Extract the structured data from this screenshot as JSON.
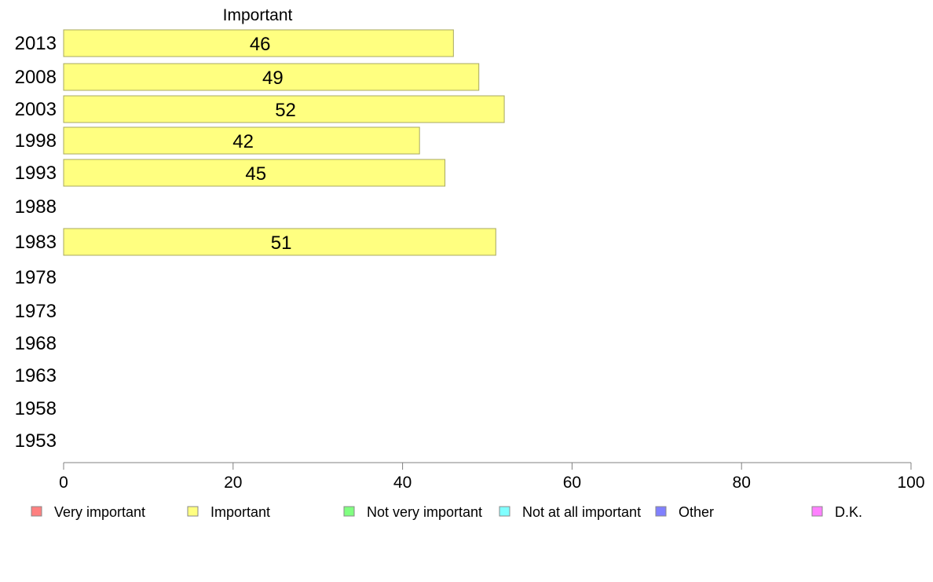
{
  "chart_data": {
    "type": "bar",
    "orientation": "horizontal",
    "series_label": "Important",
    "categories": [
      "2013",
      "2008",
      "2003",
      "1998",
      "1993",
      "1988",
      "1983",
      "1978",
      "1973",
      "1968",
      "1963",
      "1958",
      "1953"
    ],
    "series": [
      {
        "name": "Important",
        "values": [
          46,
          49,
          52,
          42,
          45,
          null,
          51,
          null,
          null,
          null,
          null,
          null,
          null
        ]
      }
    ],
    "xlim": [
      0,
      100
    ],
    "xticks": [
      0,
      20,
      40,
      60,
      80,
      100
    ],
    "grid": false,
    "legend_position": "bottom",
    "legend": [
      {
        "label": "Very important",
        "color": "#ff8080"
      },
      {
        "label": "Important",
        "color": "#ffff80"
      },
      {
        "label": "Not very important",
        "color": "#80ff80"
      },
      {
        "label": "Not at all important",
        "color": "#80ffff"
      },
      {
        "label": "Other",
        "color": "#8080ff"
      },
      {
        "label": "D.K.",
        "color": "#ff80ff"
      }
    ],
    "bar_color": "#ffff80"
  }
}
